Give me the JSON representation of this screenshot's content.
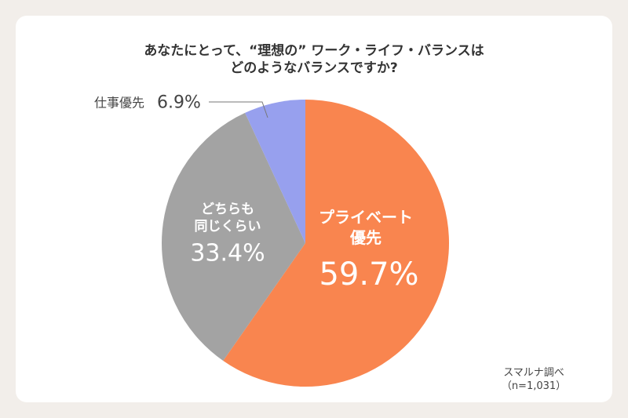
{
  "chart_data": {
    "type": "pie",
    "title": "あなたにとって、“理想の” ワーク・ライフ・バランスは\nどのようなバランスですか?",
    "categories": [
      "プライベート\n優先",
      "どちらも\n同じくらい",
      "仕事優先"
    ],
    "values": [
      59.7,
      33.4,
      6.9
    ],
    "value_labels": [
      "59.7%",
      "33.4%",
      "6.9%"
    ],
    "colors": [
      "#f9854f",
      "#a3a3a3",
      "#97a0ee"
    ],
    "source": "スマルナ調べ（n=1,031）"
  }
}
